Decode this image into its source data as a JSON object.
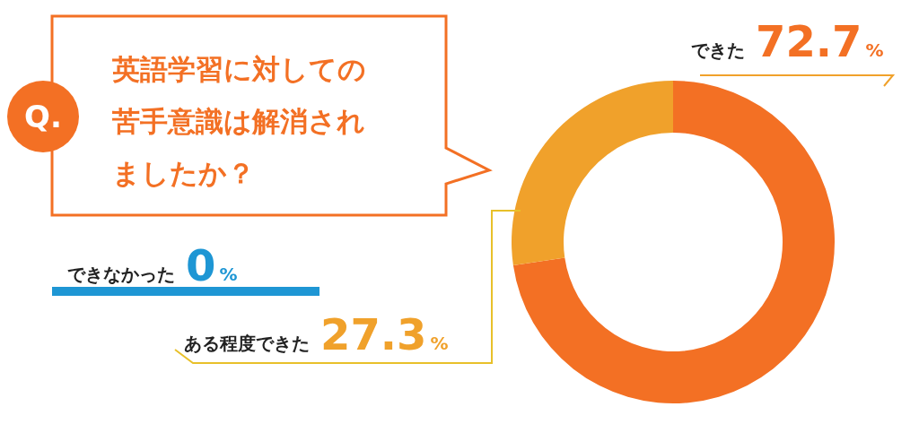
{
  "chart_data": {
    "type": "donut",
    "title": "英語学習に対しての苦手意識は解消されましたか？",
    "annotations": [
      "Q."
    ],
    "categories": [
      "できた",
      "ある程度できた",
      "できなかった"
    ],
    "values": [
      72.7,
      27.3,
      0
    ],
    "colors": [
      "#f37024",
      "#f0a12b",
      "#1e96d4"
    ],
    "value_labels": [
      "72.7%",
      "27.3%",
      "0%"
    ]
  }
}
